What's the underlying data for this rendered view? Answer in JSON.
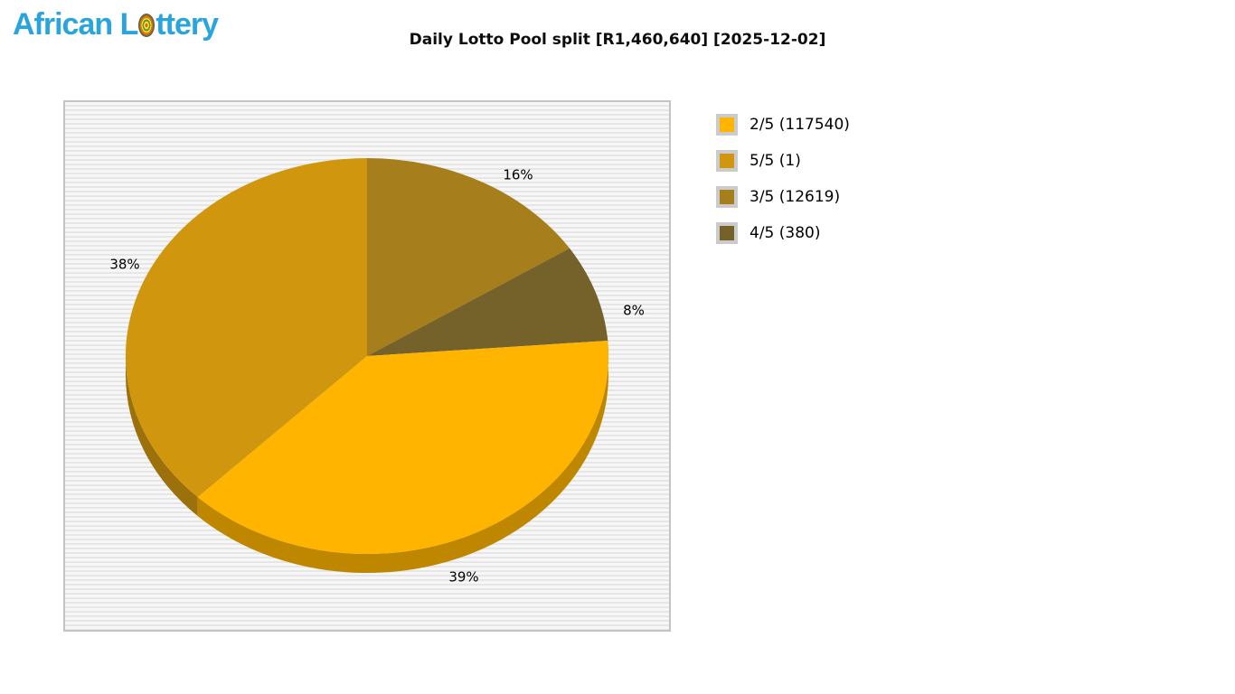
{
  "header": {
    "logo": {
      "full_text": "African Lottery",
      "text_before_ball": "African L",
      "text_after_ball": "ttery",
      "color": "#2AA4DC",
      "ball_icon": "lottery-ball-icon"
    },
    "title": "Daily Lotto Pool split [R1,460,640] [2025-12-02]"
  },
  "chart_data": {
    "type": "pie",
    "style": "3d",
    "title": "Daily Lotto Pool split [R1,460,640] [2025-12-02]",
    "total_pool": "R1,460,640",
    "draw_date": "2025-12-02",
    "start_angle_deg": 0,
    "clockwise": true,
    "legend_position": "right",
    "background_stripes": [
      "#f7f7f7",
      "#e6e6e6"
    ],
    "segments": [
      {
        "division": "2/5",
        "winners": 117540,
        "percent": 39,
        "percent_label": "39%",
        "color": "#FFB400",
        "legend_label": "2/5 (117540)"
      },
      {
        "division": "5/5",
        "winners": 1,
        "percent": 38,
        "percent_label": "38%",
        "color": "#D0960E",
        "legend_label": "5/5 (1)"
      },
      {
        "division": "3/5",
        "winners": 12619,
        "percent": 16,
        "percent_label": "16%",
        "color": "#A67E1B",
        "legend_label": "3/5 (12619)"
      },
      {
        "division": "4/5",
        "winners": 380,
        "percent": 8,
        "percent_label": "8%",
        "color": "#75622A",
        "legend_label": "4/5 (380)"
      }
    ],
    "draw_order": [
      "3/5",
      "4/5",
      "2/5",
      "5/5"
    ]
  }
}
